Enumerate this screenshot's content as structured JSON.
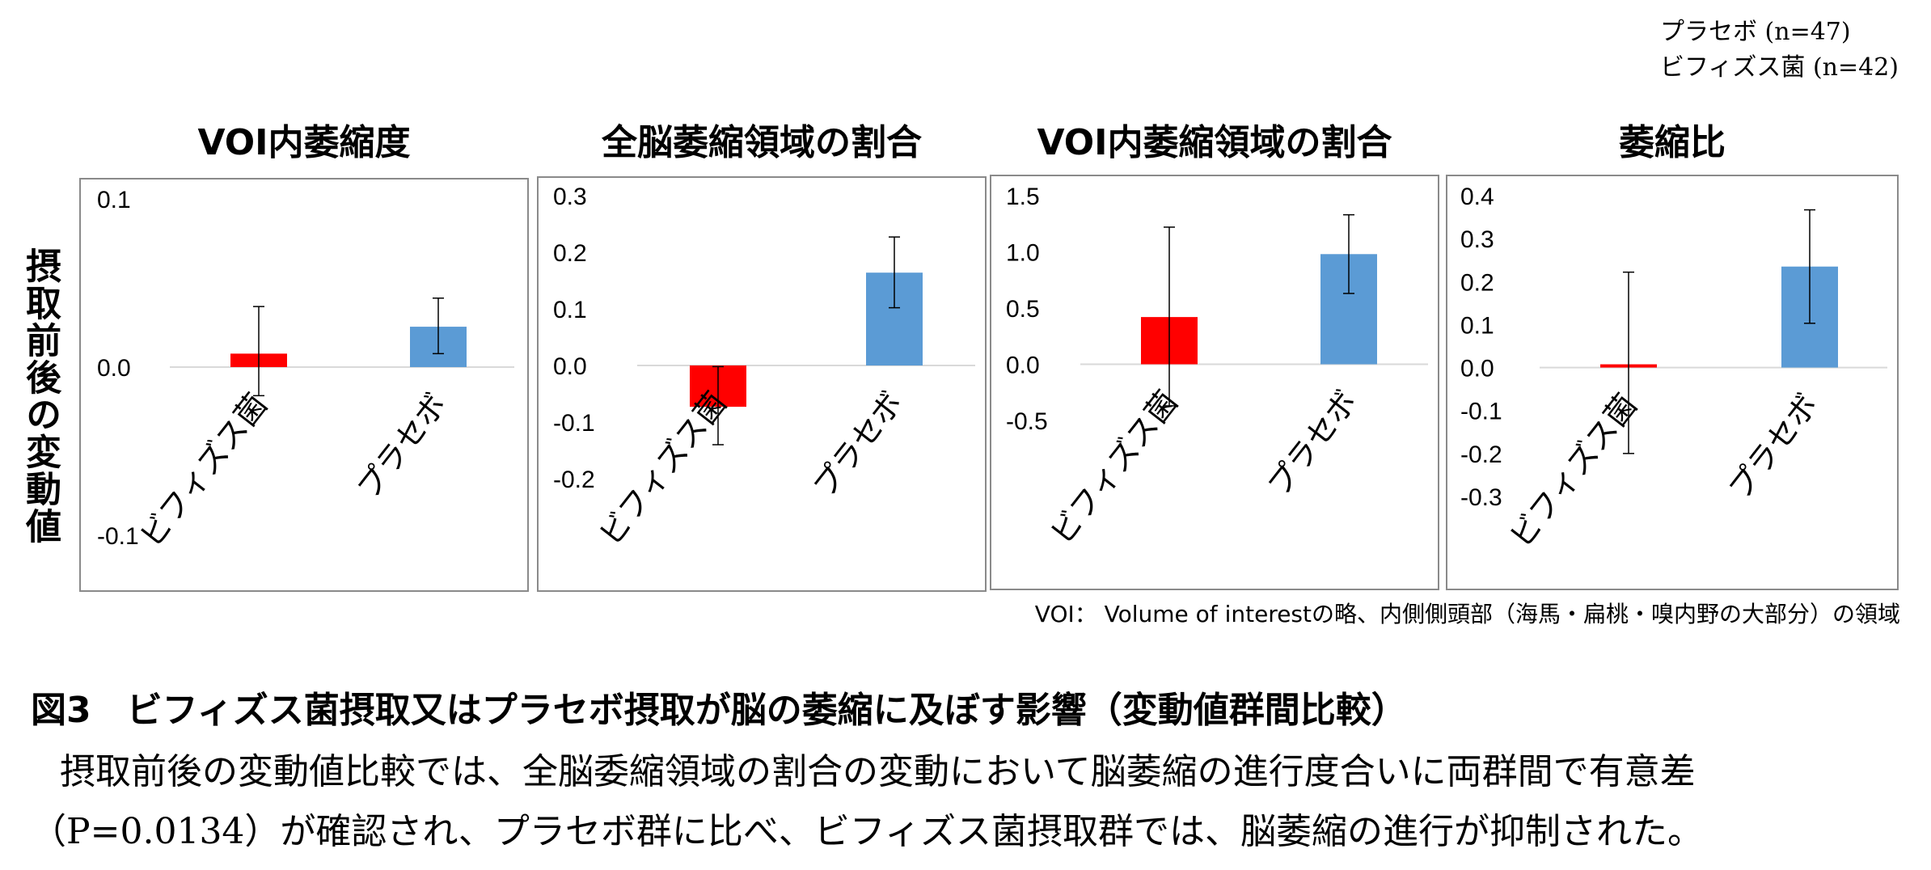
{
  "legend_note": {
    "line1": "プラセボ (n=47)",
    "line2": "ビフィズス菌 (n=42)"
  },
  "ylabel": "摂取前後の変動値",
  "voi_note": "VOI： Volume of interestの略、内側側頭部（海馬・扁桃・嗅内野の大部分）の領域",
  "caption": {
    "title": "図3　ビフィズス菌摂取又はプラセボ摂取が脳の萎縮に及ぼす影響（変動値群間比較）",
    "body": "摂取前後の変動値比較では、全脳委縮領域の割合の変動において脳萎縮の進行度合いに両群間で有意差（P=0.0134）が確認され、プラセボ群に比べ、ビフィズス菌摂取群では、脳萎縮の進行が抑制された。"
  },
  "colors": {
    "bifidus": "#ff0000",
    "placebo": "#5b9bd5",
    "axis": "#d9d9d9",
    "frame": "#8a8a8a"
  },
  "chart_data": [
    {
      "type": "bar",
      "title": "VOI内萎縮度",
      "categories": [
        "ビフィズス菌",
        "プラセボ"
      ],
      "values": [
        0.008,
        0.024
      ],
      "error_low": [
        -0.017,
        0.008
      ],
      "error_high": [
        0.036,
        0.041
      ],
      "ylim": [
        -0.1,
        0.1
      ],
      "yticks": [
        "0.1",
        "0.0",
        "-0.1"
      ],
      "ytick_values": [
        0.1,
        0.0,
        -0.1
      ]
    },
    {
      "type": "bar",
      "title": "全脳萎縮領域の割合",
      "categories": [
        "ビフィズス菌",
        "プラセボ"
      ],
      "values": [
        -0.073,
        0.164
      ],
      "error_low": [
        -0.14,
        0.102
      ],
      "error_high": [
        -0.002,
        0.227
      ],
      "ylim": [
        -0.2,
        0.3
      ],
      "yticks": [
        "0.3",
        "0.2",
        "0.1",
        "0.0",
        "-0.1",
        "-0.2"
      ],
      "ytick_values": [
        0.3,
        0.2,
        0.1,
        0.0,
        -0.1,
        -0.2
      ]
    },
    {
      "type": "bar",
      "title": "VOI内萎縮領域の割合",
      "categories": [
        "ビフィズス菌",
        "プラセボ"
      ],
      "values": [
        0.42,
        0.98
      ],
      "error_low": [
        -0.37,
        0.63
      ],
      "error_high": [
        1.22,
        1.33
      ],
      "ylim": [
        -0.5,
        1.5
      ],
      "yticks": [
        "1.5",
        "1.0",
        "0.5",
        "0.0",
        "-0.5"
      ],
      "ytick_values": [
        1.5,
        1.0,
        0.5,
        0.0,
        -0.5
      ]
    },
    {
      "type": "bar",
      "title": "萎縮比",
      "categories": [
        "ビフィズス菌",
        "プラセボ"
      ],
      "values": [
        0.007,
        0.235
      ],
      "error_low": [
        -0.2,
        0.103
      ],
      "error_high": [
        0.222,
        0.367
      ],
      "ylim": [
        -0.3,
        0.4
      ],
      "yticks": [
        "0.4",
        "0.3",
        "0.2",
        "0.1",
        "0.0",
        "-0.1",
        "-0.2",
        "-0.3"
      ],
      "ytick_values": [
        0.4,
        0.3,
        0.2,
        0.1,
        0.0,
        -0.1,
        -0.2,
        -0.3
      ]
    }
  ]
}
